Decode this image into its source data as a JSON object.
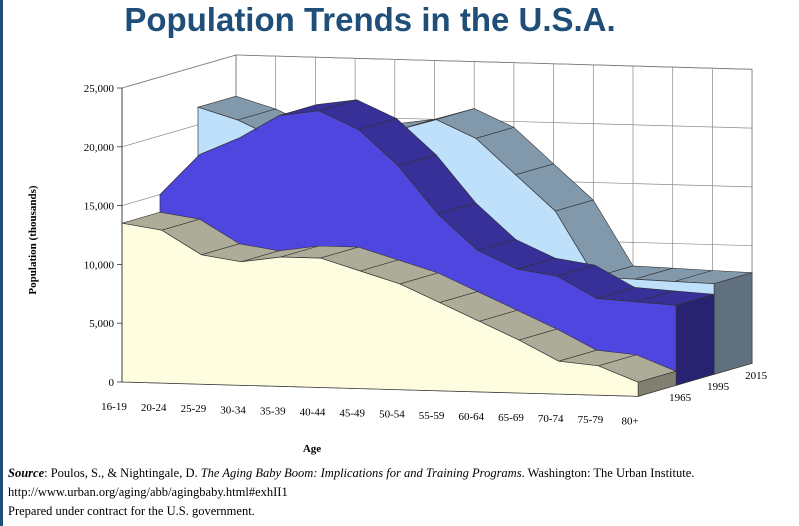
{
  "title": "Population Trends in the U.S.A.",
  "chart_data": {
    "type": "area",
    "title": "Population Trends in the U.S.A.",
    "xlabel": "Age",
    "ylabel": "Population (thousands)",
    "ylim": [
      0,
      25000
    ],
    "yticks": [
      "0",
      "5,000",
      "10,000",
      "15,000",
      "20,000",
      "25,000"
    ],
    "categories": [
      "16-19",
      "20-24",
      "25-29",
      "30-34",
      "35-39",
      "40-44",
      "45-49",
      "50-54",
      "55-59",
      "60-64",
      "65-69",
      "70-74",
      "75-79",
      "80+"
    ],
    "series": [
      {
        "name": "1965",
        "values": [
          13500,
          13000,
          11000,
          10500,
          11000,
          11000,
          10000,
          9000,
          7500,
          6000,
          4500,
          2800,
          2500,
          1200
        ]
      },
      {
        "name": "1995",
        "values": [
          15000,
          18500,
          20000,
          22000,
          22500,
          21000,
          18000,
          14000,
          11000,
          9500,
          9000,
          7200,
          7000,
          6800
        ]
      },
      {
        "name": "2015",
        "values": [
          21500,
          20500,
          19000,
          18500,
          19500,
          20000,
          21000,
          19500,
          16500,
          13500,
          8000,
          7900,
          7800,
          7700
        ]
      }
    ],
    "colors": {
      "1965": "#fffde0",
      "1995": "#4f46e0",
      "2015": "#bfe0fb"
    },
    "grid": true
  },
  "source": {
    "lead": "Source",
    "authors": ": Poulos, S., & Nightingale, D. ",
    "book": "The Aging Baby Boom:  Implications for and Training Programs",
    "publisher": ".  Washington: The Urban Institute. http://www.urban.org/aging/abb/agingbaby.html#exhII1",
    "note": "Prepared under contract for the U.S. government."
  }
}
